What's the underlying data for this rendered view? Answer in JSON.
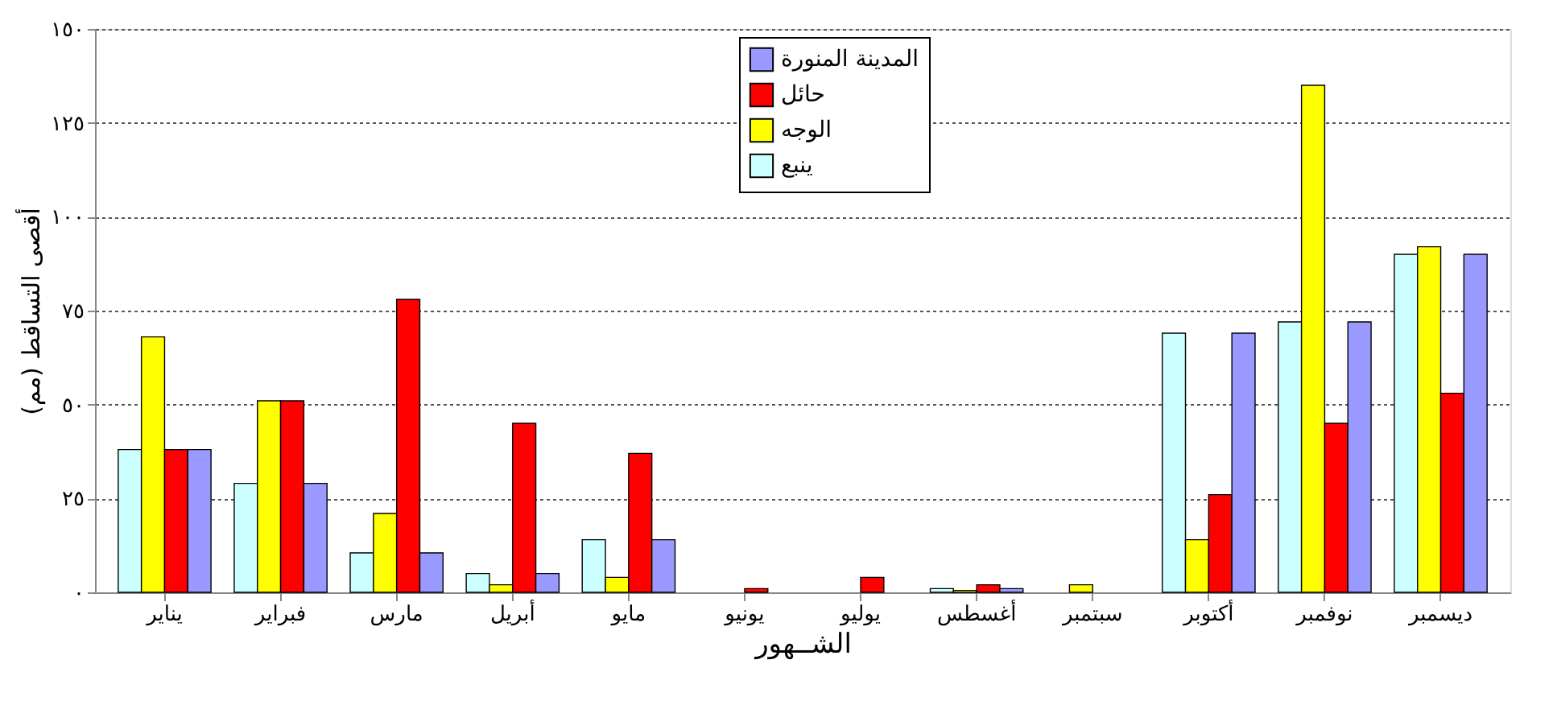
{
  "chart_data": {
    "type": "bar",
    "xlabel": "الشــهور",
    "ylabel": "أقصى التساقط (مم)",
    "categories": [
      "يناير",
      "فبراير",
      "مارس",
      "أبريل",
      "مايو",
      "يونيو",
      "يوليو",
      "أغسطس",
      "سبتمبر",
      "أكتوبر",
      "نوفمبر",
      "ديسمبر"
    ],
    "series": [
      {
        "name": "ينبع",
        "color": "#ccffff",
        "values": [
          38,
          29,
          10.5,
          5,
          14,
          0,
          0,
          1,
          0,
          69,
          72,
          90
        ]
      },
      {
        "name": "الوجه",
        "color": "#ffff00",
        "values": [
          68,
          51,
          21,
          2,
          4,
          0,
          0,
          0.5,
          2,
          14,
          135,
          92
        ]
      },
      {
        "name": "حائل",
        "color": "#ff0000",
        "values": [
          38,
          51,
          78,
          45,
          37,
          1,
          4,
          2,
          0,
          26,
          45,
          53
        ]
      },
      {
        "name": "المدينة المنورة",
        "color": "#9999ff",
        "values": [
          38,
          29,
          10.5,
          5,
          14,
          0,
          0,
          1,
          0,
          69,
          72,
          90
        ]
      }
    ],
    "ylim": [
      0,
      150
    ],
    "yticks": [
      {
        "value": 0,
        "label": "٠"
      },
      {
        "value": 25,
        "label": "٢٥"
      },
      {
        "value": 50,
        "label": "٥٠"
      },
      {
        "value": 75,
        "label": "٧٥"
      },
      {
        "value": 100,
        "label": "١٠٠"
      },
      {
        "value": 125,
        "label": "١٢٥"
      },
      {
        "value": 150,
        "label": "١٥٠"
      }
    ],
    "grid": "y",
    "legend": "top"
  }
}
